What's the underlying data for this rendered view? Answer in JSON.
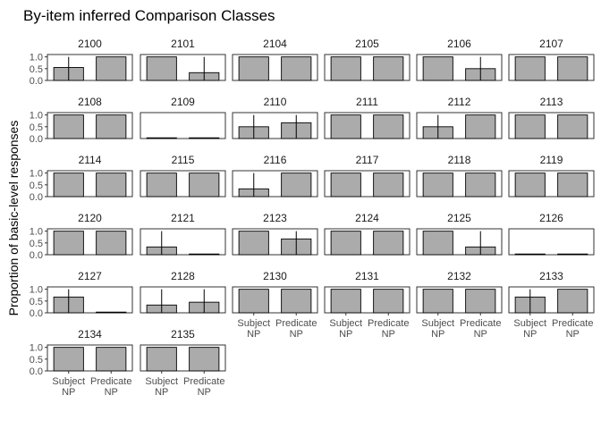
{
  "chart_data": {
    "type": "bar",
    "title": "By-item inferred Comparison Classes",
    "ylabel": "Proportion of basic-level responses",
    "xlabel": "",
    "ylim": [
      0,
      1.1
    ],
    "yticks": [
      "0.0",
      "0.5",
      "1.0"
    ],
    "ytick_values": [
      0,
      0.5,
      1
    ],
    "categories": [
      [
        "Subject",
        "NP"
      ],
      [
        "Predicate",
        "NP"
      ]
    ],
    "bar_color": "#ababab",
    "panels": [
      {
        "name": "2100",
        "values": [
          0.55,
          1.0
        ],
        "ci": [
          [
            0,
            1
          ],
          null
        ]
      },
      {
        "name": "2101",
        "values": [
          1.0,
          0.33
        ],
        "ci": [
          null,
          [
            0,
            1
          ]
        ]
      },
      {
        "name": "2104",
        "values": [
          1.0,
          1.0
        ],
        "ci": [
          null,
          null
        ]
      },
      {
        "name": "2105",
        "values": [
          1.0,
          1.0
        ],
        "ci": [
          null,
          null
        ]
      },
      {
        "name": "2106",
        "values": [
          1.0,
          0.5
        ],
        "ci": [
          null,
          [
            0,
            1
          ]
        ]
      },
      {
        "name": "2107",
        "values": [
          1.0,
          1.0
        ],
        "ci": [
          null,
          null
        ]
      },
      {
        "name": "2108",
        "values": [
          1.0,
          1.0
        ],
        "ci": [
          null,
          null
        ]
      },
      {
        "name": "2109",
        "values": [
          0.0,
          0.0
        ],
        "ci": [
          null,
          null
        ]
      },
      {
        "name": "2110",
        "values": [
          0.5,
          0.67
        ],
        "ci": [
          [
            0,
            1
          ],
          [
            0,
            1
          ]
        ]
      },
      {
        "name": "2111",
        "values": [
          1.0,
          1.0
        ],
        "ci": [
          null,
          null
        ]
      },
      {
        "name": "2112",
        "values": [
          0.5,
          1.0
        ],
        "ci": [
          [
            0,
            1
          ],
          null
        ]
      },
      {
        "name": "2113",
        "values": [
          1.0,
          1.0
        ],
        "ci": [
          null,
          null
        ]
      },
      {
        "name": "2114",
        "values": [
          1.0,
          1.0
        ],
        "ci": [
          null,
          null
        ]
      },
      {
        "name": "2115",
        "values": [
          1.0,
          1.0
        ],
        "ci": [
          null,
          null
        ]
      },
      {
        "name": "2116",
        "values": [
          0.33,
          1.0
        ],
        "ci": [
          [
            0,
            1
          ],
          null
        ]
      },
      {
        "name": "2117",
        "values": [
          1.0,
          1.0
        ],
        "ci": [
          null,
          null
        ]
      },
      {
        "name": "2118",
        "values": [
          1.0,
          1.0
        ],
        "ci": [
          null,
          null
        ]
      },
      {
        "name": "2119",
        "values": [
          1.0,
          1.0
        ],
        "ci": [
          null,
          null
        ]
      },
      {
        "name": "2120",
        "values": [
          1.0,
          1.0
        ],
        "ci": [
          null,
          null
        ]
      },
      {
        "name": "2121",
        "values": [
          0.33,
          0.0
        ],
        "ci": [
          [
            0,
            1
          ],
          null
        ]
      },
      {
        "name": "2123",
        "values": [
          1.0,
          0.67
        ],
        "ci": [
          null,
          [
            0,
            1
          ]
        ]
      },
      {
        "name": "2124",
        "values": [
          1.0,
          1.0
        ],
        "ci": [
          null,
          null
        ]
      },
      {
        "name": "2125",
        "values": [
          1.0,
          0.33
        ],
        "ci": [
          null,
          [
            0,
            1
          ]
        ]
      },
      {
        "name": "2126",
        "values": [
          0.0,
          0.0
        ],
        "ci": [
          null,
          null
        ]
      },
      {
        "name": "2127",
        "values": [
          0.67,
          0.0
        ],
        "ci": [
          [
            0,
            1
          ],
          null
        ]
      },
      {
        "name": "2128",
        "values": [
          0.33,
          0.45
        ],
        "ci": [
          [
            0,
            1
          ],
          [
            0,
            1
          ]
        ]
      },
      {
        "name": "2130",
        "values": [
          1.0,
          1.0
        ],
        "ci": [
          null,
          null
        ]
      },
      {
        "name": "2131",
        "values": [
          1.0,
          1.0
        ],
        "ci": [
          null,
          null
        ]
      },
      {
        "name": "2132",
        "values": [
          1.0,
          1.0
        ],
        "ci": [
          null,
          null
        ]
      },
      {
        "name": "2133",
        "values": [
          0.67,
          1.0
        ],
        "ci": [
          [
            0,
            1
          ],
          null
        ]
      },
      {
        "name": "2134",
        "values": [
          1.0,
          1.0
        ],
        "ci": [
          null,
          null
        ]
      },
      {
        "name": "2135",
        "values": [
          1.0,
          1.0
        ],
        "ci": [
          null,
          null
        ]
      }
    ],
    "grid": false,
    "legend": "none"
  }
}
